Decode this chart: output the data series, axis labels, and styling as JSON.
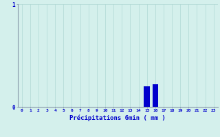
{
  "hours": [
    0,
    1,
    2,
    3,
    4,
    5,
    6,
    7,
    8,
    9,
    10,
    11,
    12,
    13,
    14,
    15,
    16,
    17,
    18,
    19,
    20,
    21,
    22,
    23
  ],
  "values": [
    0,
    0,
    0,
    0,
    0,
    0,
    0,
    0,
    0,
    0,
    0,
    0,
    0,
    0,
    0,
    0.2,
    0.22,
    0,
    0,
    0,
    0,
    0,
    0,
    0
  ],
  "bar_color": "#0000cc",
  "background_color": "#d4f0ec",
  "grid_color": "#b0d8d4",
  "axis_color": "#8899aa",
  "text_color": "#0000cc",
  "xlabel": "Précipitations 6min ( mm )",
  "ylim": [
    0,
    1.0
  ],
  "yticks": [
    0,
    1
  ],
  "figwidth": 3.2,
  "figheight": 2.0,
  "dpi": 100
}
